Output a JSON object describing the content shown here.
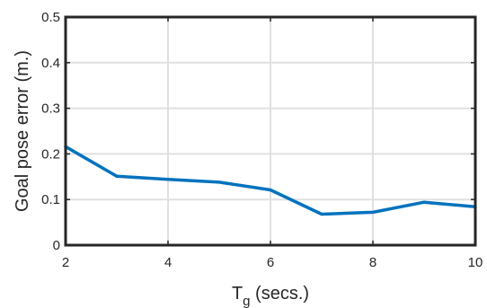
{
  "chart_data": {
    "type": "line",
    "xlabel": "T",
    "xlabel_subscript": "g",
    "xlabel_suffix": " (secs.)",
    "ylabel": "Goal pose error (m.)",
    "xlim": [
      2,
      10
    ],
    "ylim": [
      0,
      0.5
    ],
    "xticks": [
      "2",
      "4",
      "6",
      "8",
      "10"
    ],
    "yticks": [
      "0",
      "0.1",
      "0.2",
      "0.3",
      "0.4",
      "0.5"
    ],
    "grid": true,
    "x": [
      2,
      3,
      4,
      5,
      6,
      7,
      8,
      9,
      10
    ],
    "series": [
      {
        "values": [
          0.216,
          0.151,
          0.144,
          0.138,
          0.121,
          0.068,
          0.072,
          0.094,
          0.084
        ],
        "color": "#0072BD"
      }
    ]
  },
  "colors": {
    "axis": "#262626",
    "grid": "#e0e0e0",
    "background": "#ffffff"
  }
}
